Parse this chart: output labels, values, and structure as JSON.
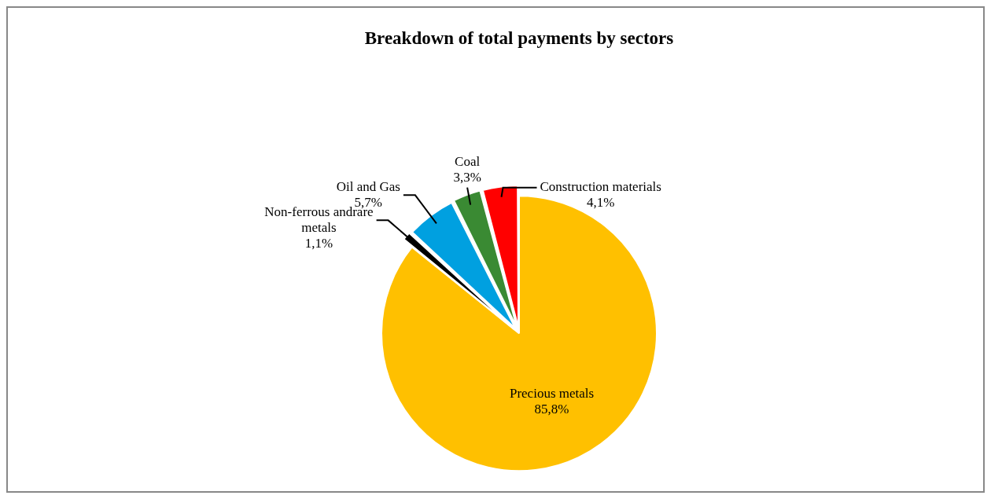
{
  "chart_data": {
    "type": "pie",
    "title": "Breakdown of total payments by sectors",
    "categories": [
      "Precious metals",
      "Non-ferrous andrare metals",
      "Oil and Gas",
      "Coal",
      "Construction materials"
    ],
    "values": [
      85.8,
      1.1,
      5.7,
      3.3,
      4.1
    ],
    "value_labels": [
      "85,8%",
      "1,1%",
      "5,7%",
      "3,3%",
      "4,1%"
    ],
    "colors": [
      "#ffc000",
      "#000000",
      "#00a0e0",
      "#3a8a33",
      "#ff0000"
    ],
    "legend": false
  }
}
